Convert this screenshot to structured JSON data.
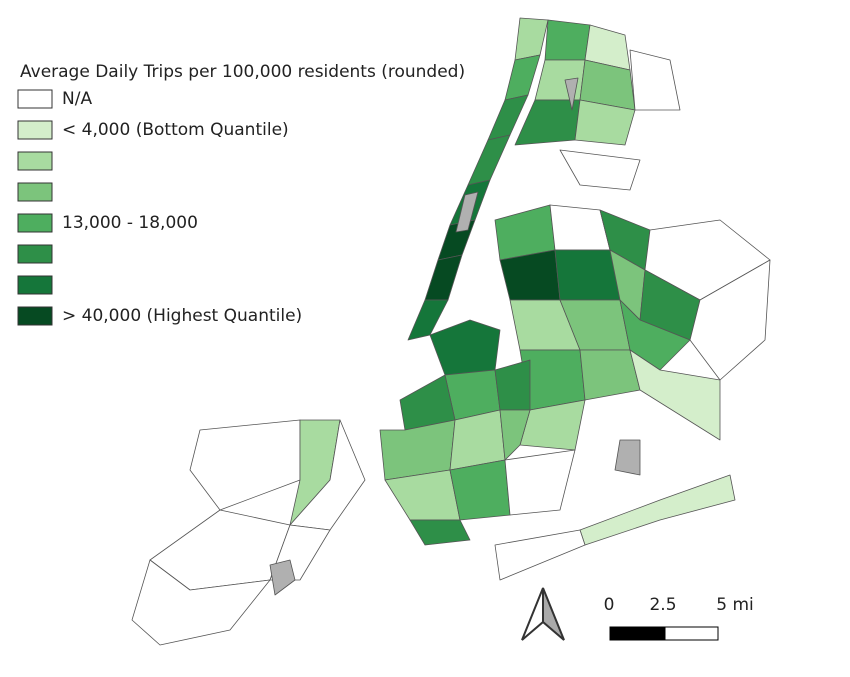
{
  "legend": {
    "title": "Average Daily Trips per 100,000 residents (rounded)",
    "items": [
      {
        "label": "N/A",
        "color": "#ffffff"
      },
      {
        "label": "< 4,000 (Bottom Quantile)",
        "color": "#d4eecb"
      },
      {
        "label": null,
        "color": "#a8dba0"
      },
      {
        "label": null,
        "color": "#7cc47c"
      },
      {
        "label": "13,000 - 18,000",
        "color": "#4eae5f"
      },
      {
        "label": null,
        "color": "#2e8f48"
      },
      {
        "label": null,
        "color": "#15763a"
      },
      {
        "label": "> 40,000 (Highest Quantile)",
        "color": "#064a22"
      }
    ]
  },
  "scale_bar": {
    "labels": [
      "0",
      "2.5",
      "5 mi"
    ]
  }
}
